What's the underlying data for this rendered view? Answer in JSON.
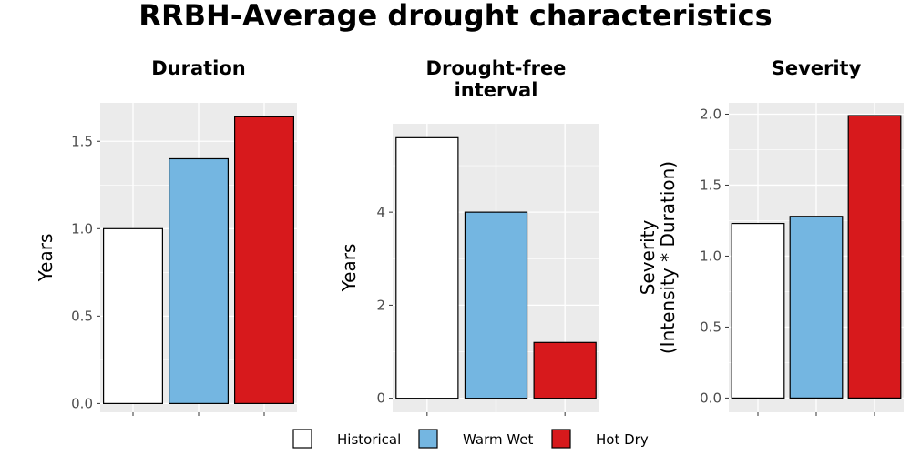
{
  "title": "RRBH-Average drought characteristics",
  "colors": {
    "panel_bg": "#ebebeb",
    "grid": "#ffffff",
    "bar_outline": "#000000",
    "tick_text": "#4d4d4d"
  },
  "legend": {
    "position": "bottom",
    "items": [
      {
        "label": "Historical",
        "color": "#ffffff"
      },
      {
        "label": "Warm Wet",
        "color": "#74b6e1"
      },
      {
        "label": "Hot Dry",
        "color": "#d7191c"
      }
    ]
  },
  "chart_data": [
    {
      "type": "bar",
      "title": "Duration",
      "ylabel": "Years",
      "categories": [
        "Historical",
        "Warm Wet",
        "Hot Dry"
      ],
      "values": [
        1.0,
        1.4,
        1.64
      ],
      "ylim": [
        -0.05,
        1.72
      ],
      "yticks": [
        0.0,
        0.5,
        1.0,
        1.5
      ],
      "ytick_labels": [
        "0.0",
        "0.5",
        "1.0",
        "1.5"
      ],
      "grid": true
    },
    {
      "type": "bar",
      "title": "Drought-free\ninterval",
      "ylabel": "Years",
      "categories": [
        "Historical",
        "Warm Wet",
        "Hot Dry"
      ],
      "values": [
        5.6,
        4.0,
        1.2
      ],
      "ylim": [
        -0.3,
        5.9
      ],
      "yticks": [
        0,
        2,
        4
      ],
      "ytick_labels": [
        "0",
        "2",
        "4"
      ],
      "grid": true
    },
    {
      "type": "bar",
      "title": "Severity",
      "ylabel": "Severity\n(Intensity * Duration)",
      "categories": [
        "Historical",
        "Warm Wet",
        "Hot Dry"
      ],
      "values": [
        1.23,
        1.28,
        1.99
      ],
      "ylim": [
        -0.1,
        2.08
      ],
      "yticks": [
        0.0,
        0.5,
        1.0,
        1.5,
        2.0
      ],
      "ytick_labels": [
        "0.0",
        "0.5",
        "1.0",
        "1.5",
        "2.0"
      ],
      "grid": true
    }
  ]
}
